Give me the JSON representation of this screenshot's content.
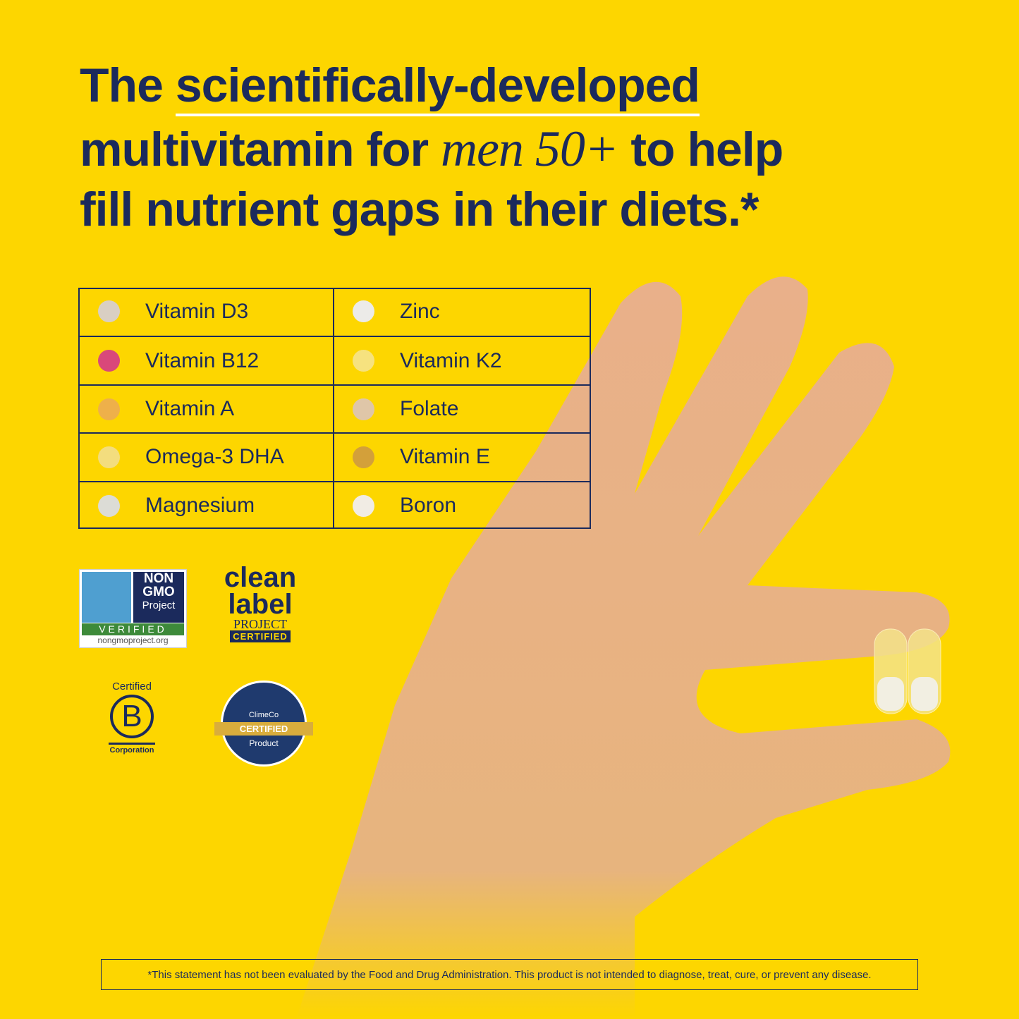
{
  "headline": {
    "line1_a": "The",
    "line1_b": "scientifically-developed",
    "line2_a": "multivitamin for",
    "line2_b": "men 50+",
    "line2_c": "to help",
    "line3": "fill nutrient gaps in their diets.*"
  },
  "nutrients": {
    "left": [
      {
        "name": "Vitamin D3",
        "color": "#d9cfc3"
      },
      {
        "name": "Vitamin B12",
        "color": "#d9487a"
      },
      {
        "name": "Vitamin A",
        "color": "#eeb04a"
      },
      {
        "name": "Omega-3 DHA",
        "color": "#f3dd7e"
      },
      {
        "name": "Magnesium",
        "color": "#dcdcd6"
      }
    ],
    "right": [
      {
        "name": "Zinc",
        "color": "#ecebe8"
      },
      {
        "name": "Vitamin K2",
        "color": "#f6e27f"
      },
      {
        "name": "Folate",
        "color": "#dfc6a8"
      },
      {
        "name": "Vitamin E",
        "color": "#d3a03a"
      },
      {
        "name": "Boron",
        "color": "#f1ece4"
      }
    ]
  },
  "badges": {
    "nongmo": {
      "top": "NON GMO",
      "sub": "Project",
      "verified": "VERIFIED",
      "url": "nongmoproject.org"
    },
    "cleanlabel": {
      "line1": "clean",
      "line2": "label",
      "project": "PROJECT",
      "certified": "CERTIFIED"
    },
    "bcorp": {
      "top": "Certified",
      "letter": "B",
      "bottom": "Corporation"
    },
    "climeco": {
      "name": "ClimeCo",
      "certified": "CERTIFIED",
      "product": "Product"
    }
  },
  "disclaimer": "*This statement has not been evaluated by the Food and Drug Administration. This product is not intended to diagnose, treat, cure, or prevent any disease."
}
